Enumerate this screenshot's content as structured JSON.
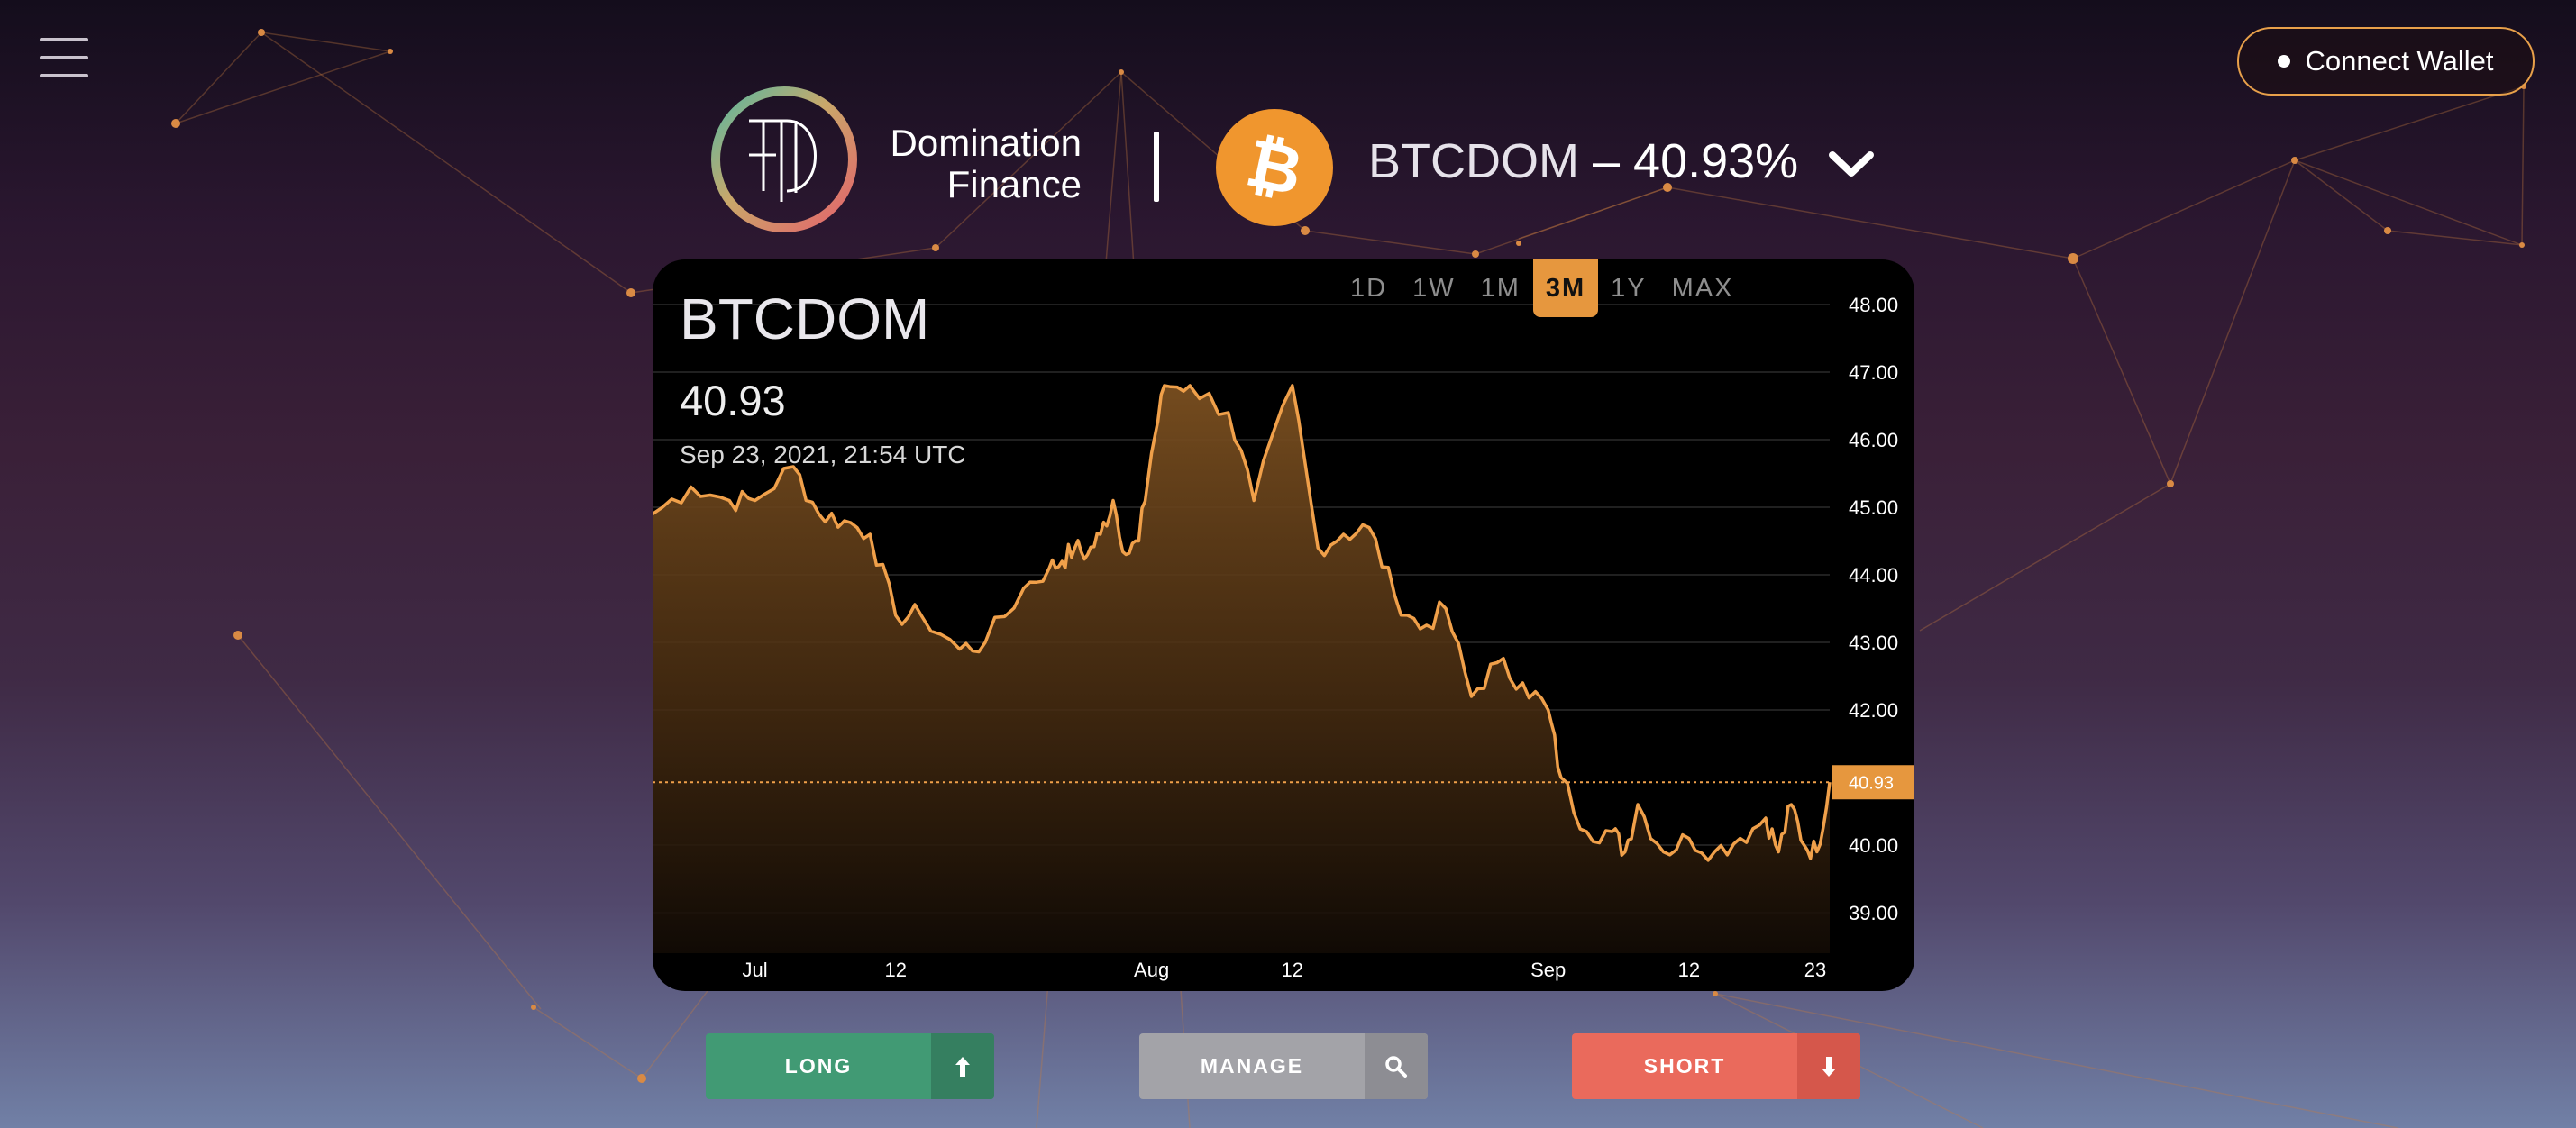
{
  "header": {
    "menu_icon": "hamburger-menu-icon",
    "connect_wallet_label": "Connect Wallet",
    "brand_line1": "Domination",
    "brand_line2": "Finance",
    "ticker_symbol": "BTCDOM",
    "ticker_dash": " – ",
    "ticker_value": "40.93%",
    "asset_icon": "bitcoin-icon",
    "dropdown_icon": "chevron-down-icon"
  },
  "chart": {
    "title": "BTCDOM",
    "value": "40.93",
    "date": "Sep 23, 2021, 21:54 UTC",
    "range_tabs": [
      "1D",
      "1W",
      "1M",
      "3M",
      "1Y",
      "MAX"
    ],
    "active_range": "3M",
    "price_tag": "40.93"
  },
  "chart_data": {
    "type": "area",
    "title": "BTCDOM",
    "xlabel": "",
    "ylabel": "",
    "x_tick_labels": [
      "Jul",
      "12",
      "Aug",
      "12",
      "Sep",
      "12",
      "23"
    ],
    "y_tick_labels": [
      "48.00",
      "47.00",
      "46.00",
      "45.00",
      "44.00",
      "43.00",
      "42.00",
      "40.00",
      "39.00"
    ],
    "ylim": [
      38.4,
      48.4
    ],
    "grid": true,
    "current_value": 40.93,
    "x": [
      "2021-06-23",
      "2021-06-26",
      "2021-06-29",
      "2021-07-01",
      "2021-07-04",
      "2021-07-06",
      "2021-07-08",
      "2021-07-10",
      "2021-07-12",
      "2021-07-14",
      "2021-07-17",
      "2021-07-19",
      "2021-07-22",
      "2021-07-24",
      "2021-07-25",
      "2021-07-26",
      "2021-07-27",
      "2021-07-28",
      "2021-07-29",
      "2021-07-30",
      "2021-07-31",
      "2021-08-01",
      "2021-08-02",
      "2021-08-04",
      "2021-08-07",
      "2021-08-09",
      "2021-08-12",
      "2021-08-14",
      "2021-08-16",
      "2021-08-18",
      "2021-08-20",
      "2021-08-22",
      "2021-08-24",
      "2021-08-26",
      "2021-08-28",
      "2021-08-30",
      "2021-09-01",
      "2021-09-02",
      "2021-09-04",
      "2021-09-06",
      "2021-09-07",
      "2021-09-08",
      "2021-09-10",
      "2021-09-12",
      "2021-09-14",
      "2021-09-16",
      "2021-09-18",
      "2021-09-19",
      "2021-09-20",
      "2021-09-21",
      "2021-09-22",
      "2021-09-23"
    ],
    "series": [
      {
        "values": [
          44.9,
          45.3,
          45.1,
          45.1,
          45.6,
          44.9,
          44.8,
          44.6,
          43.4,
          43.4,
          42.9,
          43.0,
          43.8,
          44.1,
          44.2,
          44.4,
          44.3,
          44.6,
          45.1,
          44.3,
          44.5,
          45.8,
          46.8,
          46.8,
          46.4,
          45.1,
          46.8,
          44.4,
          44.6,
          44.7,
          43.7,
          43.2,
          43.5,
          42.2,
          42.7,
          42.4,
          42.0,
          41.0,
          40.2,
          40.2,
          39.9,
          40.6,
          39.9,
          40.1,
          39.9,
          40.1,
          40.4,
          39.9,
          40.6,
          40.0,
          39.9,
          40.93
        ]
      }
    ]
  },
  "actions": {
    "long_label": "LONG",
    "long_icon": "arrow-up-icon",
    "manage_label": "MANAGE",
    "manage_icon": "search-icon",
    "short_label": "SHORT",
    "short_icon": "arrow-down-icon"
  },
  "colors": {
    "accent": "#e6973e",
    "long": "#419a74",
    "manage": "#a3a3a8",
    "short": "#ea6a5c",
    "bitcoin": "#f0962e"
  }
}
